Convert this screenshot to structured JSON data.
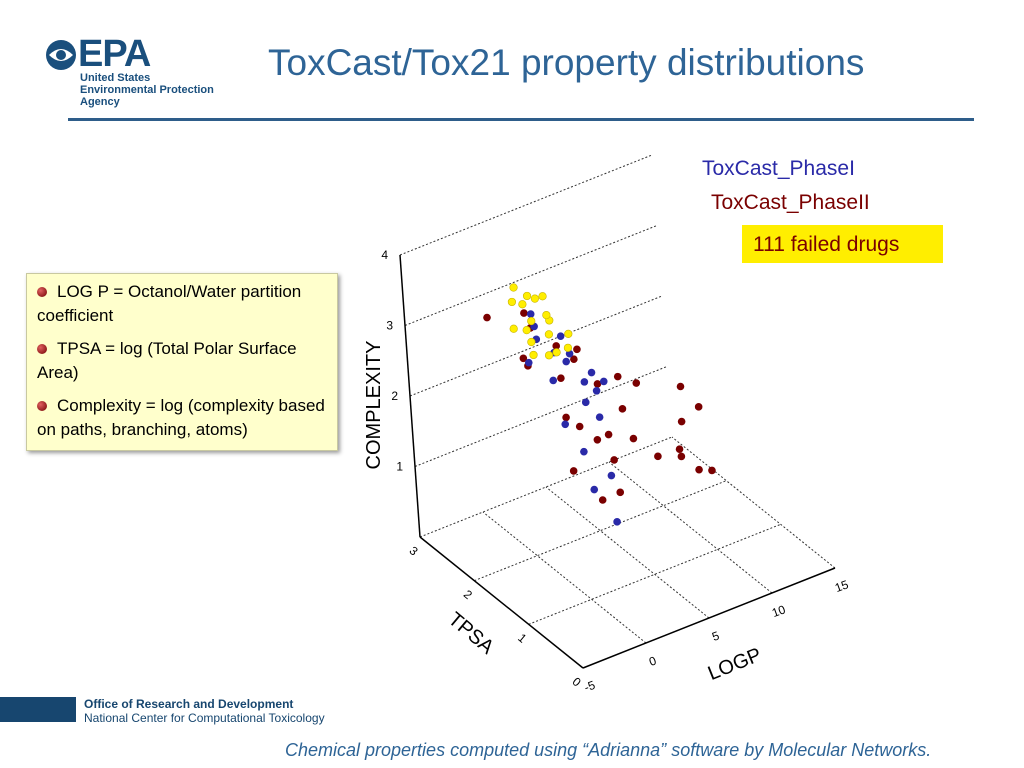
{
  "header": {
    "logo": "EPA",
    "agency": [
      "United States",
      "Environmental Protection",
      "Agency"
    ],
    "title": "ToxCast/Tox21 property distributions"
  },
  "notes": [
    "LOG P = Octanol/Water partition coefficient",
    "TPSA = log (Total Polar Surface Area)",
    "Complexity =  log (complexity based on paths, branching, atoms)"
  ],
  "chart_data": {
    "type": "scatter3d",
    "xlabel": "LOGP",
    "ylabel": "TPSA",
    "zlabel": "COMPLEXITY",
    "xlim": [
      -5,
      15
    ],
    "ylim": [
      0,
      3
    ],
    "zlim": [
      0,
      4
    ],
    "xticks": [
      -5,
      0,
      5,
      10,
      15
    ],
    "yticks": [
      0,
      1,
      2,
      3
    ],
    "zticks": [
      1,
      2,
      3,
      4
    ],
    "grid": true,
    "series": [
      {
        "name": "ToxCast_PhaseI",
        "color": "#2a2aa8",
        "x": [
          1,
          2,
          3,
          1.5,
          2.5,
          3.5,
          0.5,
          4,
          2,
          3,
          1,
          2.8,
          0,
          4.5,
          2.2,
          1.8,
          3.2,
          0.8,
          2.6,
          1.2
        ],
        "y": [
          1.7,
          1.9,
          1.6,
          2.1,
          1.8,
          1.5,
          1.4,
          1.7,
          2.3,
          2.0,
          1.2,
          1.3,
          1.9,
          1.6,
          1.0,
          2.2,
          1.9,
          1.0,
          1.5,
          0.7
        ],
        "z": [
          2.6,
          2.8,
          2.5,
          2.9,
          2.7,
          2.4,
          2.2,
          2.5,
          3.1,
          2.9,
          1.9,
          2.2,
          2.8,
          2.4,
          1.6,
          3.0,
          2.7,
          1.5,
          2.3,
          1.2
        ]
      },
      {
        "name": "ToxCast_PhaseII",
        "color": "#7a0000",
        "x": [
          1,
          2,
          3,
          0,
          4,
          2.5,
          1.5,
          3.5,
          5,
          0.5,
          2,
          4.5,
          -1,
          6,
          3,
          1,
          2,
          8.5,
          9,
          9.5,
          10,
          8,
          9.2,
          10.5,
          -0.5,
          7,
          5.5,
          3,
          1.5,
          2.5
        ],
        "y": [
          1.5,
          1.8,
          1.2,
          2.0,
          1.6,
          1.0,
          2.2,
          1.9,
          1.4,
          1.3,
          0.8,
          1.1,
          2.4,
          1.7,
          2.1,
          0.9,
          1.5,
          1.2,
          1.0,
          1.4,
          1.5,
          1.1,
          0.8,
          1.3,
          1.8,
          1.6,
          0.9,
          1.7,
          2.3,
          1.3
        ],
        "z": [
          2.2,
          2.5,
          2.0,
          2.8,
          2.4,
          1.8,
          3.0,
          2.6,
          2.1,
          1.6,
          1.5,
          1.9,
          3.2,
          2.3,
          2.7,
          1.4,
          2.0,
          1.3,
          1.2,
          1.6,
          2.0,
          1.5,
          1.3,
          1.8,
          3.6,
          2.2,
          1.7,
          2.9,
          2.4,
          1.9
        ]
      },
      {
        "name": "111 failed drugs",
        "color": "#ffee00",
        "x": [
          1.5,
          2,
          2.5,
          3,
          3.5,
          1,
          2.2,
          2.8,
          3.2,
          1.8,
          4,
          2.6,
          1.2,
          3.8,
          2.4,
          3,
          2,
          1.6
        ],
        "y": [
          2.2,
          2.3,
          2.1,
          2.2,
          2.0,
          2.4,
          2.5,
          2.4,
          2.3,
          2.6,
          2.1,
          2.0,
          2.1,
          2.5,
          2.7,
          2.6,
          2.0,
          2.3
        ],
        "z": [
          2.8,
          3.0,
          2.9,
          3.0,
          2.7,
          2.9,
          3.1,
          3.2,
          3.0,
          3.1,
          2.8,
          2.7,
          2.7,
          3.1,
          3.2,
          3.1,
          2.7,
          2.9
        ]
      }
    ]
  },
  "footer": {
    "office": "Office of Research and Development",
    "center": "National Center for Computational Toxicology",
    "caption": "Chemical properties computed using “Adrianna” software by Molecular Networks."
  }
}
